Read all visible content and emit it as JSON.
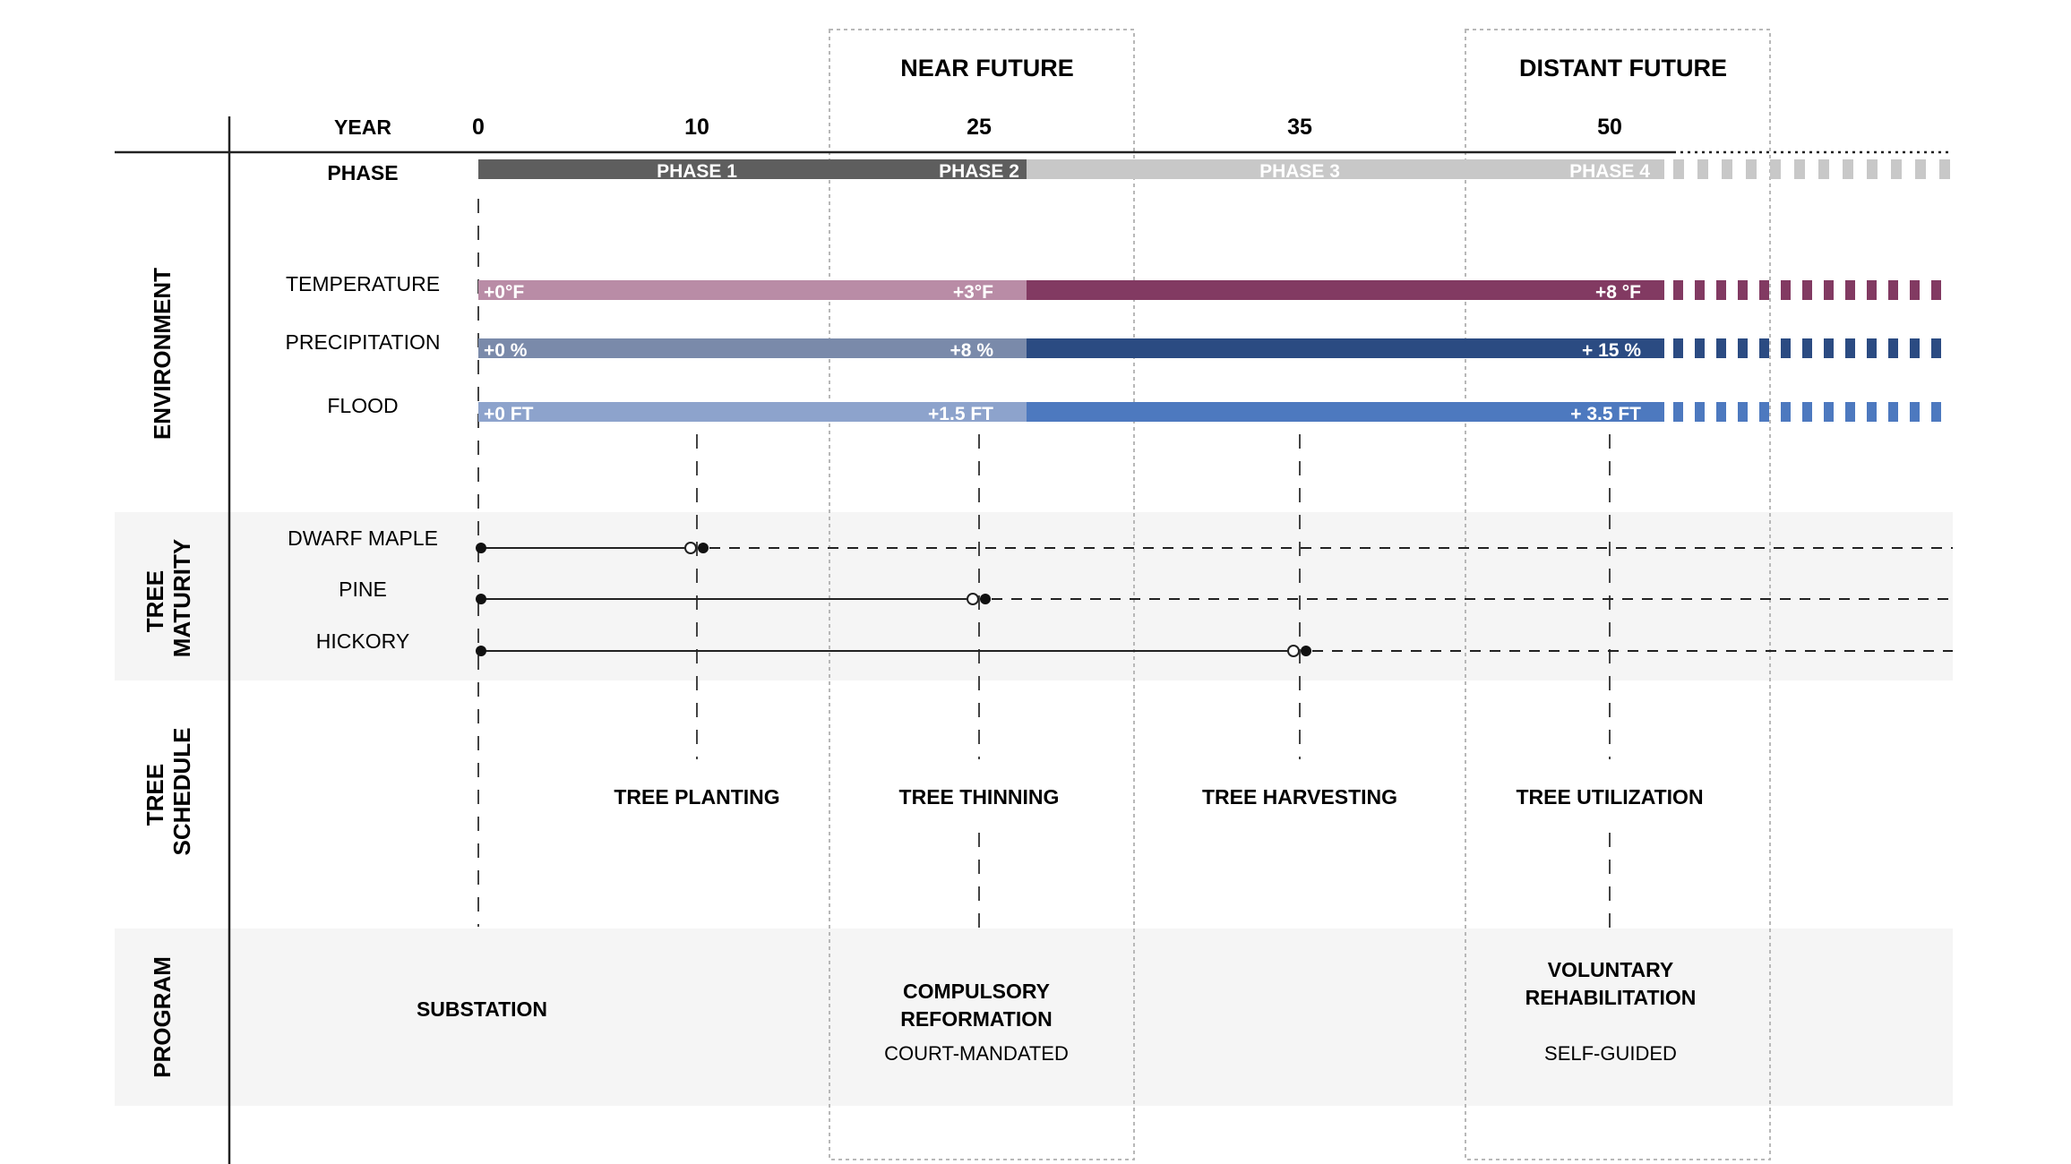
{
  "header": {
    "year_label": "YEAR",
    "phase_label": "PHASE",
    "near_future": "NEAR FUTURE",
    "distant_future": "DISTANT FUTURE",
    "years": [
      "0",
      "10",
      "25",
      "35",
      "50"
    ]
  },
  "phases": [
    {
      "label": "PHASE 1",
      "color": "#5e5e5e"
    },
    {
      "label": "PHASE 2",
      "color": "#5e5e5e"
    },
    {
      "label": "PHASE 3",
      "color": "#c8c8c8"
    },
    {
      "label": "PHASE 4",
      "color": "#c8c8c8"
    }
  ],
  "sections": {
    "environment": "ENVIRONMENT",
    "tree_maturity": [
      "TREE",
      "MATURITY"
    ],
    "tree_schedule": [
      "TREE",
      "SCHEDULE"
    ],
    "program": "PROGRAM"
  },
  "environment": [
    {
      "label": "TEMPERATURE",
      "values": [
        "+0°F",
        "+3°F",
        "+8 °F"
      ],
      "light": "#b98ca6",
      "dark": "#823a62"
    },
    {
      "label": "PRECIPITATION",
      "values": [
        "+0 %",
        "+8 %",
        "+ 15 %"
      ],
      "light": "#7a8aaa",
      "dark": "#2b4b82"
    },
    {
      "label": "FLOOD",
      "values": [
        "+0 FT",
        "+1.5 FT",
        "+ 3.5 FT"
      ],
      "light": "#8da3cc",
      "dark": "#4d79bf"
    }
  ],
  "tree_maturity": [
    {
      "label": "DWARF MAPLE",
      "start_year": 0,
      "mature_year": 10
    },
    {
      "label": "PINE",
      "start_year": 0,
      "mature_year": 25
    },
    {
      "label": "HICKORY",
      "start_year": 0,
      "mature_year": 35
    }
  ],
  "tree_schedule": [
    "TREE PLANTING",
    "TREE THINNING",
    "TREE HARVESTING",
    "TREE UTILIZATION"
  ],
  "program": {
    "substation": "SUBSTATION",
    "compulsory": [
      "COMPULSORY",
      "REFORMATION"
    ],
    "compulsory_sub": "COURT-MANDATED",
    "voluntary": [
      "VOLUNTARY",
      "REHABILITATION"
    ],
    "voluntary_sub": "SELF-GUIDED"
  }
}
